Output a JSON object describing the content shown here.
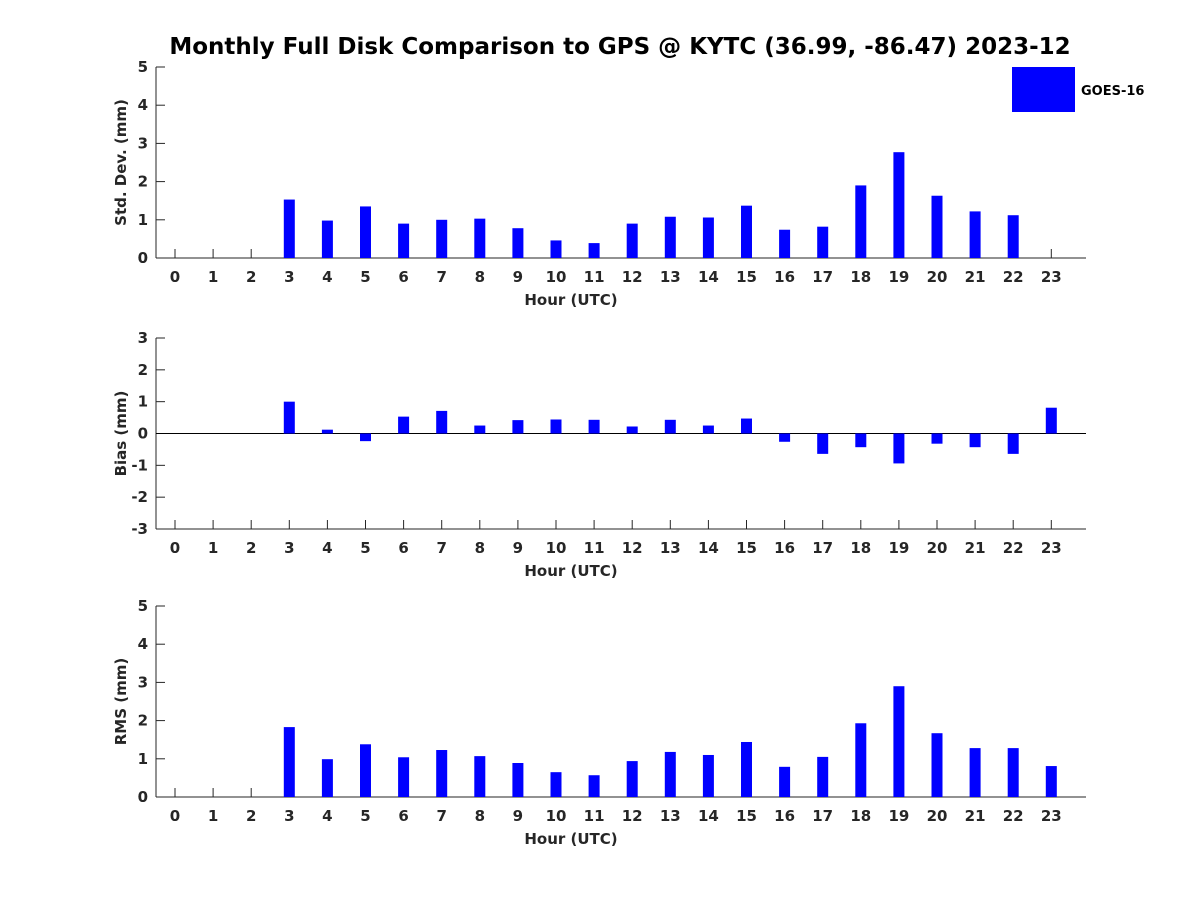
{
  "chart_data": {
    "title": "Monthly Full Disk Comparison to GPS @ KYTC (36.99, -86.47) 2023-12",
    "type": "bar",
    "legend": {
      "placement": "top-right",
      "entries": [
        "GOES-16"
      ]
    },
    "bar_color": "#0000ff",
    "categories": [
      "0",
      "1",
      "2",
      "3",
      "4",
      "5",
      "6",
      "7",
      "8",
      "9",
      "10",
      "11",
      "12",
      "13",
      "14",
      "15",
      "16",
      "17",
      "18",
      "19",
      "20",
      "21",
      "22",
      "23"
    ],
    "panels": [
      {
        "ylabel": "Std. Dev. (mm)",
        "xlabel": "Hour (UTC)",
        "ylim": [
          0,
          5
        ],
        "yticks": [
          0,
          1,
          2,
          3,
          4,
          5
        ],
        "series": [
          {
            "name": "GOES-16",
            "values": [
              null,
              null,
              null,
              1.53,
              0.98,
              1.35,
              0.9,
              1.0,
              1.03,
              0.78,
              0.46,
              0.39,
              0.9,
              1.08,
              1.06,
              1.37,
              0.74,
              0.82,
              1.9,
              2.77,
              1.63,
              1.22,
              1.12,
              null
            ]
          }
        ]
      },
      {
        "ylabel": "Bias (mm)",
        "xlabel": "Hour (UTC)",
        "ylim": [
          -3,
          3
        ],
        "yticks": [
          -3,
          -2,
          -1,
          0,
          1,
          2,
          3
        ],
        "zero_line": true,
        "series": [
          {
            "name": "GOES-16",
            "values": [
              null,
              null,
              null,
              1.0,
              0.12,
              -0.24,
              0.53,
              0.71,
              0.25,
              0.42,
              0.44,
              0.43,
              0.22,
              0.43,
              0.25,
              0.47,
              -0.26,
              -0.64,
              -0.43,
              -0.94,
              -0.32,
              -0.43,
              -0.64,
              0.81
            ]
          }
        ]
      },
      {
        "ylabel": "RMS (mm)",
        "xlabel": "Hour (UTC)",
        "ylim": [
          0,
          5
        ],
        "yticks": [
          0,
          1,
          2,
          3,
          4,
          5
        ],
        "series": [
          {
            "name": "GOES-16",
            "values": [
              null,
              null,
              null,
              1.83,
              0.99,
              1.38,
              1.04,
              1.23,
              1.07,
              0.89,
              0.65,
              0.57,
              0.94,
              1.18,
              1.1,
              1.44,
              0.79,
              1.05,
              1.93,
              2.9,
              1.67,
              1.28,
              1.28,
              0.81
            ]
          }
        ]
      }
    ]
  }
}
